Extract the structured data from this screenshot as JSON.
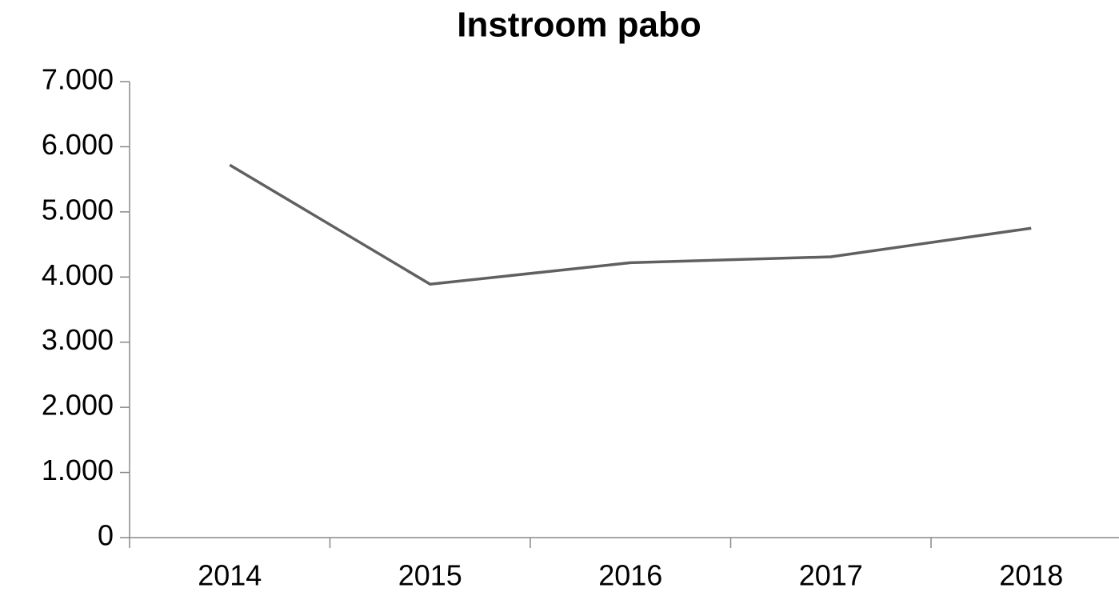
{
  "chart_data": {
    "type": "line",
    "title": "Instroom pabo",
    "categories": [
      "2014",
      "2015",
      "2016",
      "2017",
      "2018"
    ],
    "series": [
      {
        "name": "Instroom pabo",
        "color": "#606060",
        "values": [
          5720,
          3890,
          4220,
          4310,
          4750
        ]
      }
    ],
    "ylim": [
      0,
      7000
    ],
    "yticks": [
      0,
      {
        "value": 1000,
        "label": "1.000"
      },
      {
        "value": 2000,
        "label": "2.000"
      },
      {
        "value": 3000,
        "label": "3.000"
      },
      {
        "value": 4000,
        "label": "4.000"
      },
      {
        "value": 5000,
        "label": "5.000"
      },
      {
        "value": 6000,
        "label": "6.000"
      },
      {
        "value": 7000,
        "label": "7.000"
      }
    ],
    "grid": false
  }
}
